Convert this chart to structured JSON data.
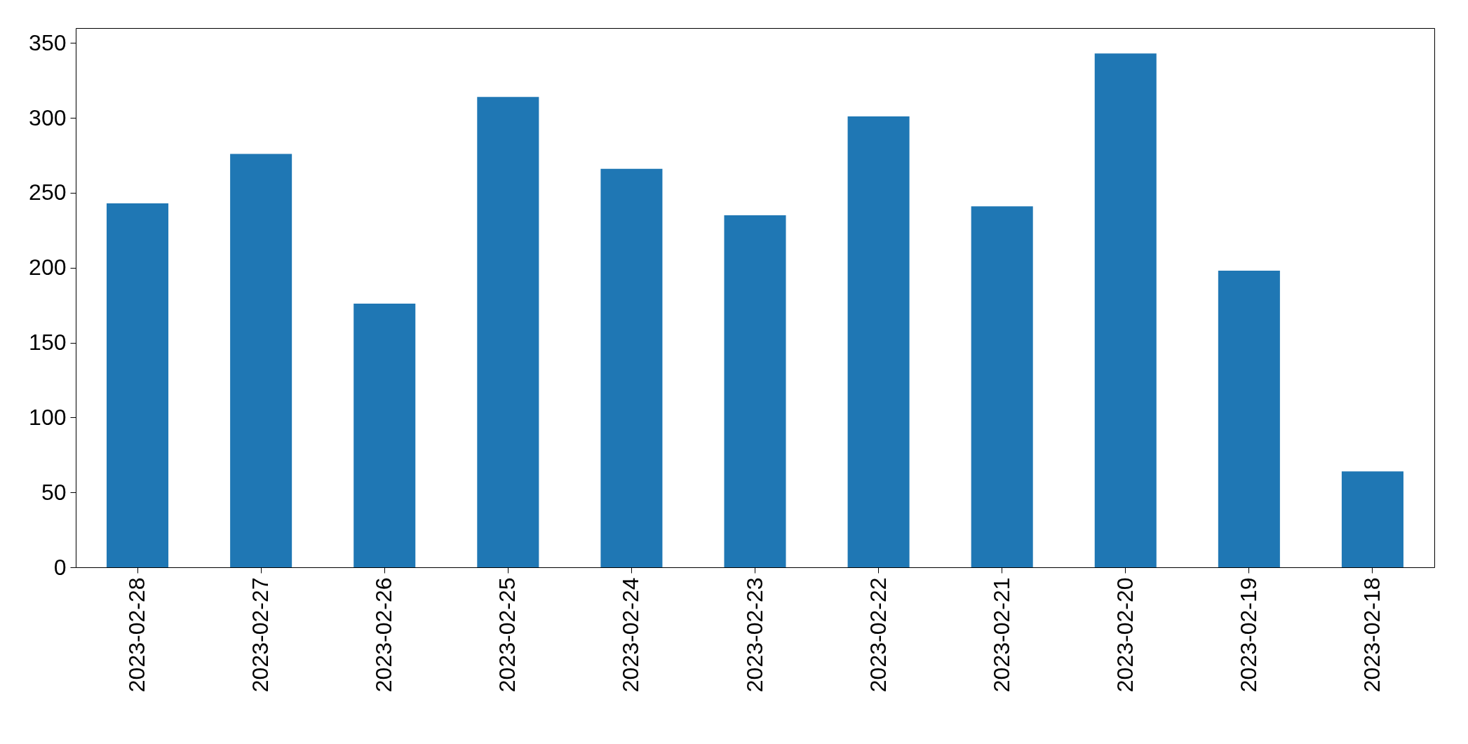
{
  "chart_data": {
    "type": "bar",
    "categories": [
      "2023-02-28",
      "2023-02-27",
      "2023-02-26",
      "2023-02-25",
      "2023-02-24",
      "2023-02-23",
      "2023-02-22",
      "2023-02-21",
      "2023-02-20",
      "2023-02-19",
      "2023-02-18"
    ],
    "values": [
      243,
      276,
      176,
      314,
      266,
      235,
      301,
      241,
      343,
      198,
      64
    ],
    "color": "#1f77b4",
    "ylim": [
      0,
      360
    ],
    "yticks": [
      0,
      50,
      100,
      150,
      200,
      250,
      300,
      350
    ],
    "grid": false
  }
}
